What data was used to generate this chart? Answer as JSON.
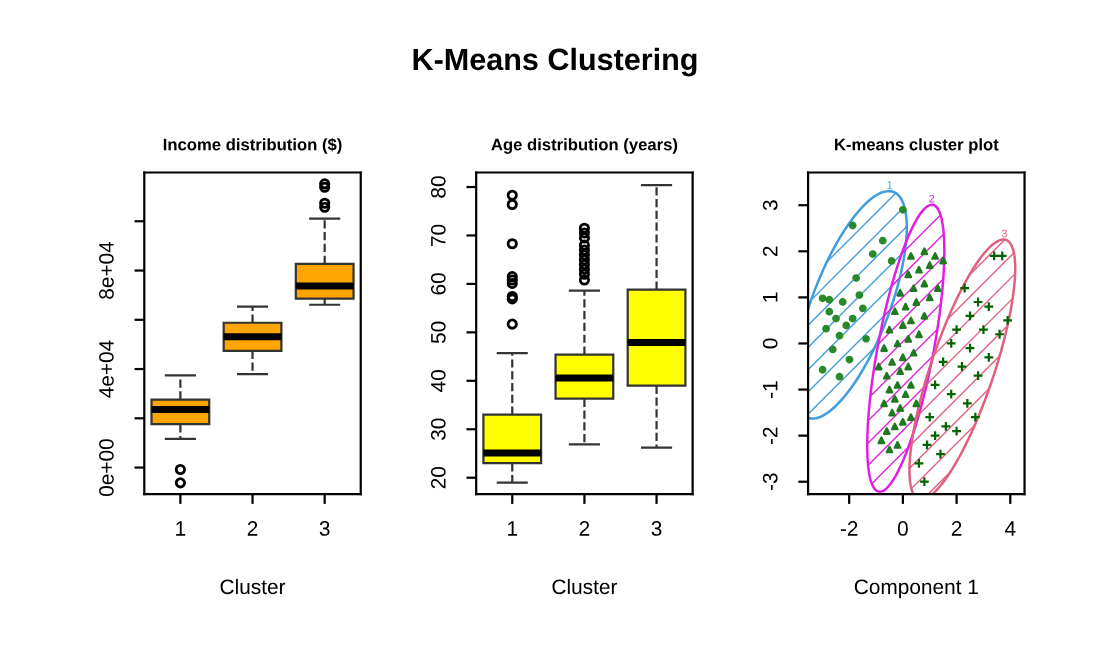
{
  "chart_data": [
    {
      "type": "other",
      "title": "K-Means Clustering"
    },
    {
      "type": "box",
      "title": "Income distribution ($)",
      "xlabel": "Cluster",
      "categories": [
        "1",
        "2",
        "3"
      ],
      "ylim": [
        -10800,
        119800
      ],
      "yticks": [
        {
          "value": 0,
          "label": "0e+00"
        },
        {
          "value": 20000,
          "label": null
        },
        {
          "value": 40000,
          "label": "4e+04"
        },
        {
          "value": 60000,
          "label": null
        },
        {
          "value": 80000,
          "label": "8e+04"
        },
        {
          "value": 100000,
          "label": null
        }
      ],
      "series": [
        {
          "color": "#ffa500",
          "boxes": [
            {
              "low": 11650,
              "q1": 17600,
              "median": 23600,
              "q3": 27600,
              "high": 37400,
              "outliers": [
                -800,
                -6200
              ]
            },
            {
              "low": 37900,
              "q1": 47400,
              "median": 53100,
              "q3": 58800,
              "high": 65300
            },
            {
              "low": 66100,
              "q1": 68600,
              "median": 73700,
              "q3": 82700,
              "high": 101100,
              "outliers": [
                105700,
                107300,
                113800,
                115200
              ]
            }
          ]
        }
      ]
    },
    {
      "type": "box",
      "title": "Age distribution (years)",
      "xlabel": "Cluster",
      "categories": [
        "1",
        "2",
        "3"
      ],
      "ylim": [
        16.6,
        83.0
      ],
      "yticks": [
        20,
        30,
        40,
        50,
        60,
        70,
        80
      ],
      "series": [
        {
          "color": "#ffff00",
          "boxes": [
            {
              "low": 19.0,
              "q1": 23.0,
              "median": 25.1,
              "q3": 33.0,
              "high": 45.7,
              "outliers": [
                51.7,
                56.9,
                57.4,
                60.1,
                60.8,
                61.5,
                68.3,
                76.4,
                78.3
              ]
            },
            {
              "low": 26.9,
              "q1": 36.3,
              "median": 40.6,
              "q3": 45.4,
              "high": 58.6,
              "outliers": [
                60.8,
                62,
                63,
                64,
                65,
                66,
                67,
                68,
                69.5,
                70.5,
                71.5
              ]
            },
            {
              "low": 26.2,
              "q1": 39.0,
              "median": 47.9,
              "q3": 58.8,
              "high": 80.4
            }
          ]
        }
      ]
    },
    {
      "type": "scatter",
      "title": "K-means cluster plot",
      "xlabel": "Component 1",
      "xlim": [
        -3.53,
        4.53
      ],
      "xticks": [
        -2,
        0,
        2,
        4
      ],
      "ylim": [
        -3.27,
        3.71
      ],
      "yticks": [
        -3,
        -2,
        -1,
        0,
        1,
        2,
        3
      ],
      "annotations": [
        "1",
        "2",
        "3"
      ],
      "series": [
        {
          "type": "scatter",
          "marker": "circle",
          "color": "#2a8a2a",
          "x": [
            -1.87,
            -0.75,
            0,
            -2.99,
            -2.74,
            -2.24,
            -1.62,
            -2.49,
            -2.11,
            -2.86,
            -2.36,
            -1.87,
            -1.49,
            -2.61,
            -1.99,
            -2.99,
            -2.36,
            -1.12,
            -0.42,
            -1.74,
            -1.37,
            -2.74
          ],
          "values": [
            2.56,
            2.23,
            2.9,
            0.98,
            0.95,
            0.9,
            1.05,
            0.54,
            0.39,
            0.32,
            0.17,
            0.54,
            0.76,
            -0.13,
            -0.35,
            -0.57,
            -0.72,
            1.94,
            1.79,
            1.42,
            0.1,
            0.69
          ]
        },
        {
          "type": "scatter",
          "marker": "triangle",
          "color": "#1f7a1f",
          "x": [
            -0.5,
            -0.2,
            -0.6,
            -0.3,
            0,
            -0.4,
            -0.1,
            -0.7,
            -0.3,
            0.1,
            -0.5,
            -0.2,
            0.3,
            -0.6,
            -0.1,
            0.2,
            -0.4,
            0,
            0.4,
            -0.7,
            -0.2,
            0.2,
            0.6,
            -0.5,
            0,
            0.3,
            0.8,
            -0.3,
            0.1,
            0.5,
            1.0,
            -0.1,
            0.4,
            0.8,
            1.3,
            0.2,
            0.6,
            1.0,
            1.5,
            0.3,
            0.8,
            1.2,
            -0.9,
            0.5,
            -0.8,
            0.3
          ],
          "values": [
            -2.3,
            -2.2,
            -1.9,
            -1.8,
            -1.7,
            -1.5,
            -1.4,
            -1.3,
            -1.2,
            -1.1,
            -1.0,
            -0.9,
            -0.9,
            -0.7,
            -0.6,
            -0.5,
            -0.4,
            -0.3,
            -0.2,
            -0.1,
            0,
            0.1,
            0.2,
            0.3,
            0.4,
            0.5,
            0.6,
            0.7,
            0.8,
            0.9,
            1.0,
            1.1,
            1.2,
            1.3,
            1.2,
            1.5,
            1.6,
            1.7,
            1.8,
            1.9,
            2.0,
            1.9,
            -0.5,
            -1.3,
            -2.1,
            -1.6
          ]
        },
        {
          "type": "scatter",
          "marker": "cross",
          "color": "#006400",
          "x": [
            3.4,
            3.7,
            2.3,
            2.8,
            3.2,
            2.5,
            2.0,
            3.0,
            3.6,
            1.8,
            2.5,
            3.2,
            1.5,
            2.2,
            2.8,
            1.2,
            1.8,
            2.4,
            1.0,
            1.6,
            2.0,
            0.9,
            1.4,
            0.6,
            0.8,
            1.2,
            3.9,
            2.7
          ],
          "values": [
            1.9,
            1.9,
            1.2,
            0.9,
            0.8,
            0.6,
            0.3,
            0.3,
            0.2,
            0,
            -0.1,
            -0.3,
            -0.4,
            -0.5,
            -0.7,
            -0.9,
            -1.1,
            -1.3,
            -1.6,
            -1.8,
            -1.9,
            -2.2,
            -2.4,
            -2.6,
            -3.0,
            -2.0,
            0.5,
            -1.6
          ]
        }
      ]
    }
  ]
}
